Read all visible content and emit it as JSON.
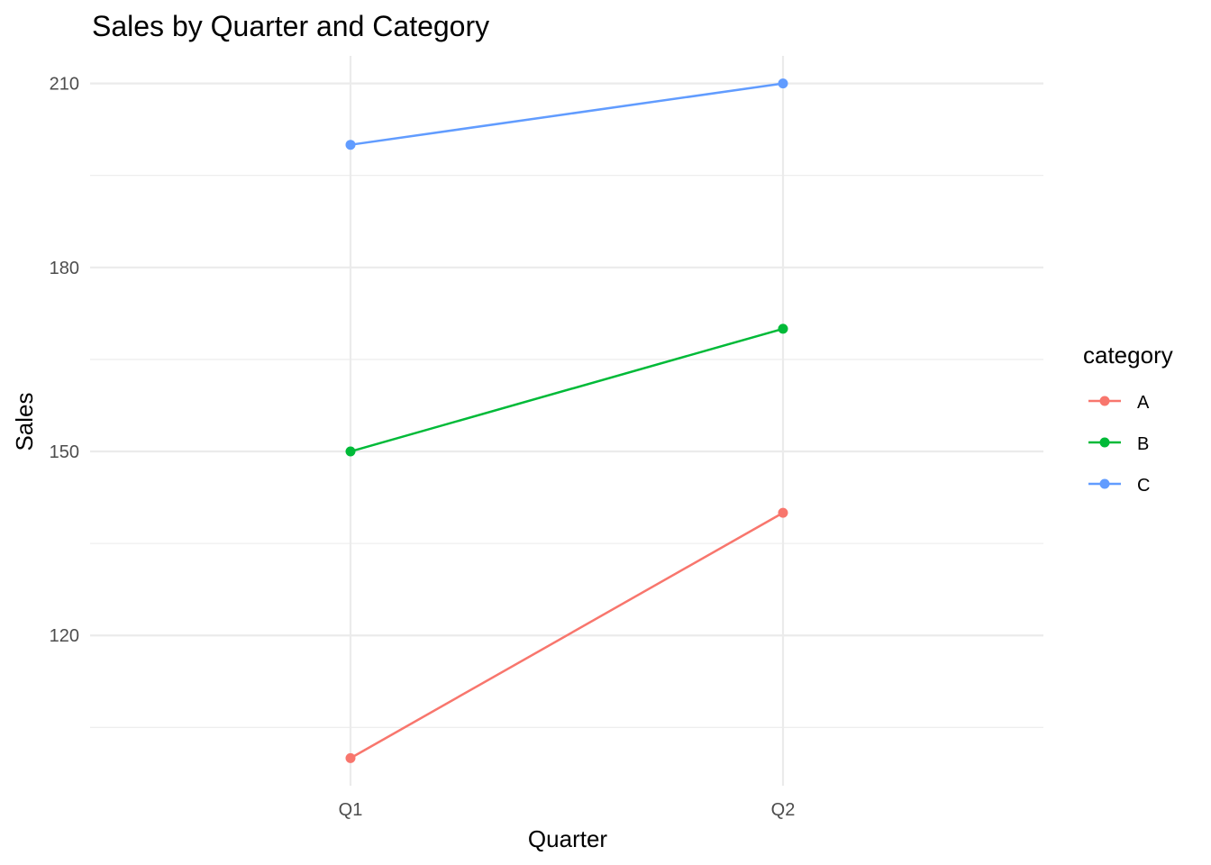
{
  "chart_data": {
    "type": "line",
    "title": "Sales by Quarter and Category",
    "xlabel": "Quarter",
    "ylabel": "Sales",
    "categories": [
      "Q1",
      "Q2"
    ],
    "series": [
      {
        "name": "A",
        "color": "#F8766D",
        "values": [
          100,
          140
        ]
      },
      {
        "name": "B",
        "color": "#00BA38",
        "values": [
          150,
          170
        ]
      },
      {
        "name": "C",
        "color": "#619CFF",
        "values": [
          200,
          210
        ]
      }
    ],
    "yticks": [
      120,
      150,
      180,
      210
    ],
    "yminor": [
      105,
      135,
      165,
      195
    ],
    "ylim": [
      95.5,
      214.5
    ],
    "legend": {
      "title": "category",
      "position": "right"
    },
    "grid": true
  }
}
